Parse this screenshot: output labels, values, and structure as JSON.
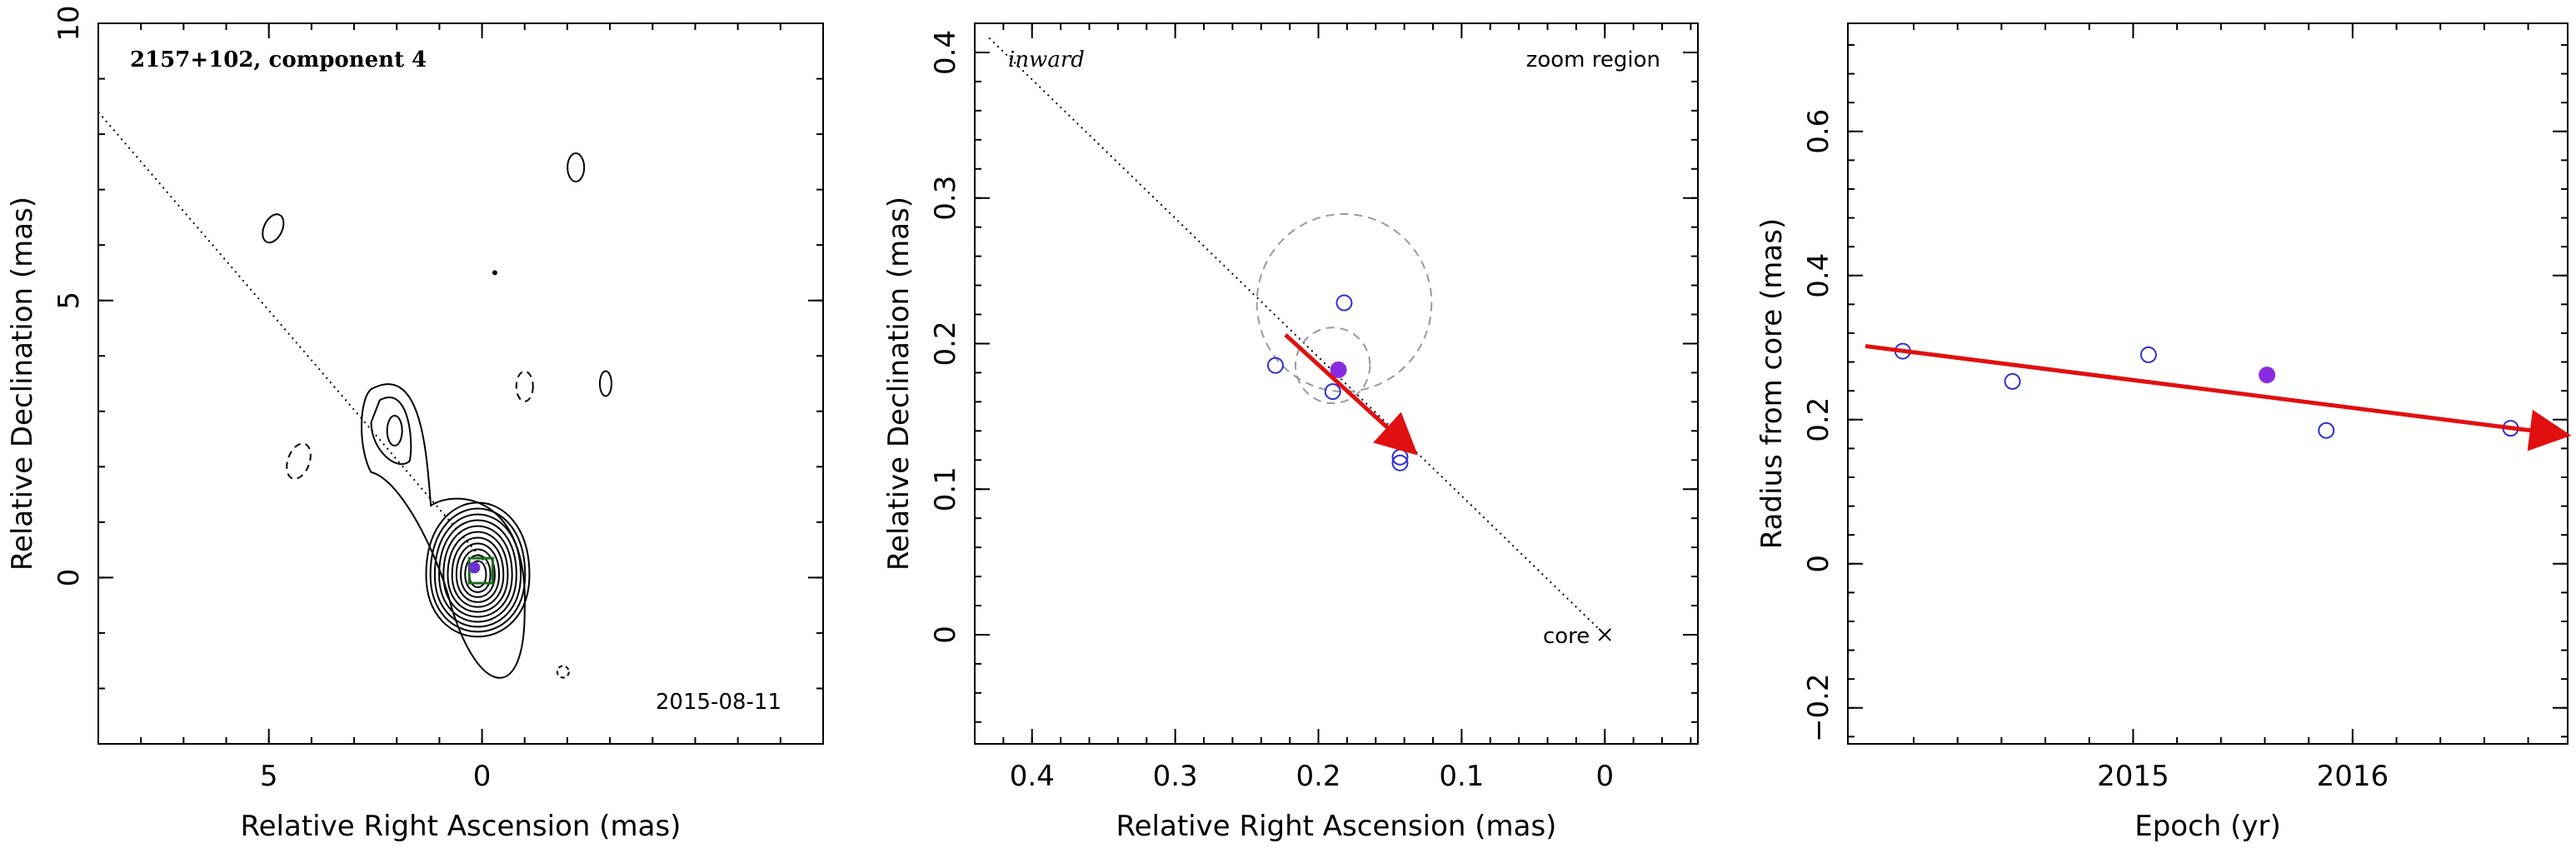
{
  "chart_data": [
    {
      "type": "contour",
      "title": "2157+102, component 4",
      "epoch_label": "2015-08-11",
      "xlabel": "Relative Right Ascension (mas)",
      "ylabel": "Relative Declination (mas)",
      "xlim": [
        9,
        -8
      ],
      "ylim": [
        -3,
        10
      ],
      "xticks": [
        5,
        0
      ],
      "yticks": [
        0,
        5,
        10
      ],
      "jet_direction_line": [
        [
          9,
          8.4
        ],
        [
          -0.1,
          0.25
        ]
      ],
      "component": {
        "x": 0.18,
        "y": 0.18
      },
      "zoom_box": {
        "x": [
          -0.25,
          0.3
        ],
        "y": [
          -0.1,
          0.35
        ]
      },
      "colors": {
        "frame": "#000000",
        "zoom_box": "#1a6e1a",
        "component": "#6a2fd0",
        "contours": "#000000"
      }
    },
    {
      "type": "scatter",
      "corner_left": "inward",
      "corner_right": "zoom region",
      "core_label": "core",
      "xlabel": "Relative Right Ascension (mas)",
      "ylabel": "Relative Declination (mas)",
      "xlim": [
        0.44,
        -0.065
      ],
      "ylim": [
        -0.075,
        0.42
      ],
      "xticks": [
        0.4,
        0.3,
        0.2,
        0.1,
        0
      ],
      "yticks": [
        0,
        0.1,
        0.2,
        0.3,
        0.4
      ],
      "points_open": [
        {
          "x": 0.23,
          "y": 0.185
        },
        {
          "x": 0.182,
          "y": 0.228
        },
        {
          "x": 0.19,
          "y": 0.167
        },
        {
          "x": 0.143,
          "y": 0.122
        },
        {
          "x": 0.143,
          "y": 0.118
        }
      ],
      "point_filled": {
        "x": 0.186,
        "y": 0.182
      },
      "dashed_circles": [
        {
          "x": 0.182,
          "y": 0.228,
          "r": 0.061
        },
        {
          "x": 0.19,
          "y": 0.185,
          "r": 0.026
        }
      ],
      "velocity_vector": {
        "from": [
          0.223,
          0.206
        ],
        "to": [
          0.137,
          0.129
        ]
      },
      "direction_line": {
        "from": [
          0.43,
          0.41
        ],
        "to": [
          0.0,
          0.0
        ]
      },
      "colors": {
        "points": "#3030d0",
        "filled": "#8a2be2",
        "vector": "#e01010",
        "circles": "#9a9a9a"
      }
    },
    {
      "type": "scatter",
      "xlabel": "Epoch (yr)",
      "ylabel": "Radius from core (mas)",
      "xlim": [
        2013.7,
        2016.98
      ],
      "ylim": [
        -0.25,
        0.75
      ],
      "xticks": [
        2015,
        2016
      ],
      "yticks": [
        -0.2,
        0,
        0.2,
        0.4,
        0.6
      ],
      "points_open": [
        {
          "x": 2013.95,
          "y": 0.295
        },
        {
          "x": 2014.45,
          "y": 0.253
        },
        {
          "x": 2015.07,
          "y": 0.29
        },
        {
          "x": 2015.88,
          "y": 0.185
        },
        {
          "x": 2016.72,
          "y": 0.188
        }
      ],
      "point_filled": {
        "x": 2015.61,
        "y": 0.262
      },
      "fit_line": {
        "from": [
          2013.78,
          0.302
        ],
        "to": [
          2016.94,
          0.18
        ]
      },
      "colors": {
        "points": "#3030d0",
        "filled": "#8a2be2",
        "fit": "#e01010"
      }
    }
  ]
}
